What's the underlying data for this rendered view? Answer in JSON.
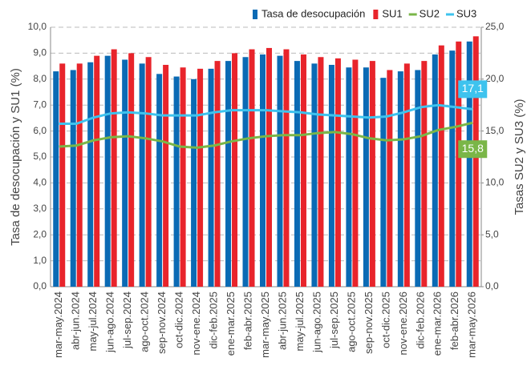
{
  "chart_data": {
    "type": "bar_line",
    "legend_position": "top-right",
    "y_label": "Tasa de desocupación y SU1 (%)",
    "y2_label": "Tasas SU2 y SU3 (%)",
    "categories": [
      "mar-may.2024",
      "abr-jun.2024",
      "may-jul.2024",
      "jun-ago.2024",
      "jul-sep.2024",
      "ago-oct.2024",
      "sep-nov.2024",
      "oct-dic.2024",
      "nov-ene.2024",
      "dic-feb.2025",
      "ene-mar.2025",
      "feb-abr.2025",
      "mar-may.2025",
      "abr-jun.2025",
      "may-jul.2025",
      "jun-ago.2025",
      "jul-sep.2025",
      "ago-oct.2025",
      "sep-nov.2025",
      "oct-dic.2025",
      "nov-ene.2026",
      "dic-feb.2026",
      "ene-mar.2026",
      "feb-abr.2026",
      "mar-may.2026"
    ],
    "series": [
      {
        "name": "Tasa de desocupación",
        "type": "bar",
        "color": "#0b6ab4",
        "values": [
          8.3,
          8.35,
          8.65,
          8.9,
          8.75,
          8.6,
          8.2,
          8.1,
          8.0,
          8.4,
          8.7,
          8.85,
          8.95,
          8.9,
          8.7,
          8.6,
          8.55,
          8.45,
          8.45,
          8.05,
          8.3,
          8.35,
          8.95,
          9.1,
          9.45
        ]
      },
      {
        "name": "SU1",
        "type": "bar",
        "color": "#e8242b",
        "values": [
          8.6,
          8.6,
          8.9,
          9.15,
          9.0,
          8.85,
          8.55,
          8.45,
          8.4,
          8.7,
          9.0,
          9.15,
          9.2,
          9.15,
          8.95,
          8.85,
          8.8,
          8.75,
          8.7,
          8.35,
          8.6,
          8.7,
          9.3,
          9.45,
          9.65
        ]
      },
      {
        "name": "SU2",
        "type": "line",
        "axis": "y2",
        "color": "#7ab648",
        "values": [
          13.5,
          13.6,
          14.1,
          14.4,
          14.5,
          14.3,
          14.0,
          13.5,
          13.4,
          13.6,
          14.0,
          14.3,
          14.5,
          14.6,
          14.6,
          14.8,
          14.9,
          14.7,
          14.3,
          14.1,
          14.2,
          14.5,
          15.1,
          15.4,
          15.8
        ],
        "value_labels": [
          null,
          null,
          null,
          null,
          null,
          null,
          null,
          null,
          null,
          null,
          null,
          null,
          null,
          null,
          null,
          null,
          null,
          null,
          null,
          null,
          null,
          null,
          null,
          null,
          "15,8"
        ]
      },
      {
        "name": "SU3",
        "type": "line",
        "axis": "y2",
        "color": "#3ec3ee",
        "values": [
          15.7,
          15.7,
          16.3,
          16.7,
          16.8,
          16.7,
          16.5,
          16.5,
          16.5,
          16.8,
          17.0,
          17.0,
          17.0,
          16.9,
          16.8,
          16.6,
          16.5,
          16.4,
          16.3,
          16.4,
          16.8,
          17.3,
          17.5,
          17.3,
          17.1
        ],
        "value_labels": [
          null,
          null,
          null,
          null,
          null,
          null,
          null,
          null,
          null,
          null,
          null,
          null,
          null,
          null,
          null,
          null,
          null,
          null,
          null,
          null,
          null,
          null,
          null,
          null,
          "17,1"
        ]
      }
    ],
    "ylim": [
      0,
      10
    ],
    "yticks": [
      {
        "value": 0,
        "label": "0,0"
      },
      {
        "value": 1,
        "label": "1,0"
      },
      {
        "value": 2,
        "label": "2,0"
      },
      {
        "value": 3,
        "label": "3,0"
      },
      {
        "value": 4,
        "label": "4,0"
      },
      {
        "value": 5,
        "label": "5,0"
      },
      {
        "value": 6,
        "label": "6,0"
      },
      {
        "value": 7,
        "label": "7,0"
      },
      {
        "value": 8,
        "label": "8,0"
      },
      {
        "value": 9,
        "label": "9,0"
      },
      {
        "value": 10,
        "label": "10,0"
      }
    ],
    "y2lim": [
      0,
      25
    ],
    "y2ticks": [
      {
        "value": 0,
        "label": "0,0"
      },
      {
        "value": 5,
        "label": "5,0"
      },
      {
        "value": 10,
        "label": "10,0"
      },
      {
        "value": 15,
        "label": "15,0"
      },
      {
        "value": 20,
        "label": "20,0"
      },
      {
        "value": 25,
        "label": "25,0"
      }
    ],
    "grid": true
  }
}
